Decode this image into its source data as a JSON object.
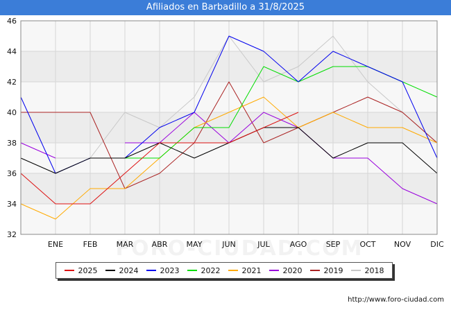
{
  "chart_data": {
    "type": "line",
    "title": "Afiliados en Barbadillo a 31/8/2025",
    "xlabel": "",
    "ylabel": "",
    "categories": [
      "",
      "ENE",
      "FEB",
      "MAR",
      "ABR",
      "MAY",
      "JUN",
      "JUL",
      "AGO",
      "SEP",
      "OCT",
      "NOV",
      "DIC"
    ],
    "ylim": [
      32,
      46
    ],
    "yticks": [
      32,
      34,
      36,
      38,
      40,
      42,
      44,
      46
    ],
    "grid": true,
    "legend_position": "bottom",
    "series": [
      {
        "name": "2025",
        "color": "#dd1111",
        "values": [
          36,
          34,
          34,
          36,
          38,
          38,
          38,
          39,
          40,
          null,
          null,
          null,
          null
        ]
      },
      {
        "name": "2024",
        "color": "#000000",
        "values": [
          37,
          36,
          37,
          37,
          38,
          37,
          38,
          39,
          39,
          37,
          38,
          38,
          36
        ]
      },
      {
        "name": "2023",
        "color": "#0000ee",
        "values": [
          41,
          36,
          37,
          37,
          39,
          40,
          45,
          44,
          42,
          44,
          43,
          42,
          37
        ]
      },
      {
        "name": "2022",
        "color": "#00dd00",
        "values": [
          null,
          null,
          37,
          37,
          37,
          39,
          39,
          43,
          42,
          43,
          43,
          42,
          41
        ]
      },
      {
        "name": "2021",
        "color": "#ffaa00",
        "values": [
          34,
          33,
          35,
          35,
          37,
          39,
          40,
          41,
          39,
          40,
          39,
          39,
          38
        ]
      },
      {
        "name": "2020",
        "color": "#9900dd",
        "values": [
          38,
          37,
          null,
          38,
          38,
          40,
          38,
          40,
          39,
          37,
          37,
          35,
          34
        ]
      },
      {
        "name": "2019",
        "color": "#aa2222",
        "values": [
          40,
          40,
          40,
          35,
          36,
          38,
          42,
          38,
          39,
          40,
          41,
          40,
          38
        ]
      },
      {
        "name": "2018",
        "color": "#c8c8c8",
        "values": [
          null,
          37,
          37,
          40,
          39,
          41,
          45,
          42,
          43,
          45,
          42,
          40,
          38
        ]
      }
    ]
  },
  "watermark": "FORO-CIUDAD.COM",
  "source": "http://www.foro-ciudad.com"
}
